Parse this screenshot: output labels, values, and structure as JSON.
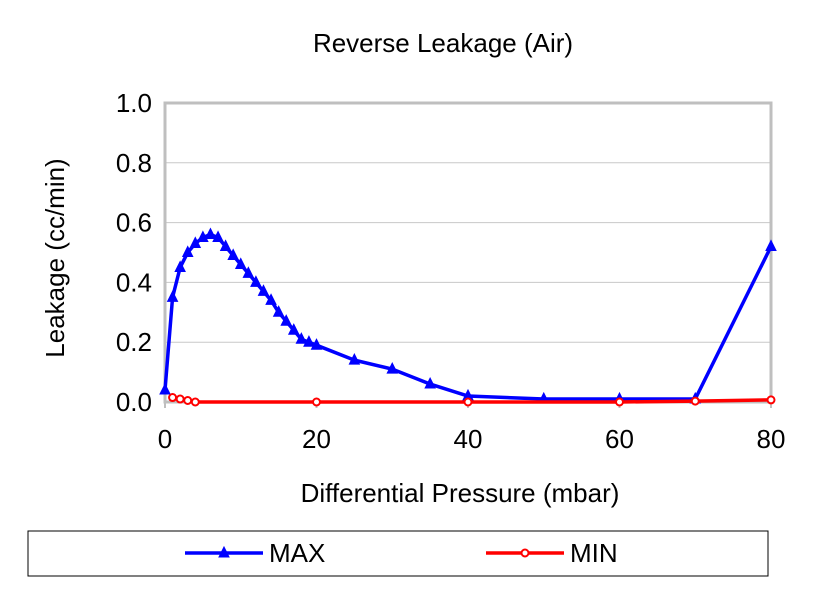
{
  "chart_data": {
    "type": "line",
    "title": "Reverse Leakage (Air)",
    "xlabel": "Differential Pressure (mbar)",
    "ylabel": "Leakage (cc/min)",
    "xlim": [
      0,
      80
    ],
    "ylim": [
      0,
      1.0
    ],
    "xticks": [
      "0",
      "20",
      "40",
      "60",
      "80"
    ],
    "yticks": [
      "0.0",
      "0.2",
      "0.4",
      "0.6",
      "0.8",
      "1.0"
    ],
    "grid": true,
    "legend_position": "bottom",
    "series": [
      {
        "name": "MAX",
        "color": "#0000ff",
        "marker": "triangle",
        "x": [
          0,
          1,
          2,
          3,
          4,
          5,
          6,
          7,
          8,
          9,
          10,
          11,
          12,
          13,
          14,
          15,
          16,
          17,
          18,
          19,
          20,
          25,
          30,
          35,
          40,
          50,
          60,
          70,
          80
        ],
        "y": [
          0.04,
          0.35,
          0.45,
          0.5,
          0.53,
          0.55,
          0.56,
          0.55,
          0.52,
          0.49,
          0.46,
          0.43,
          0.4,
          0.37,
          0.34,
          0.3,
          0.27,
          0.24,
          0.21,
          0.2,
          0.19,
          0.14,
          0.11,
          0.06,
          0.02,
          0.01,
          0.01,
          0.01,
          0.52
        ]
      },
      {
        "name": "MIN",
        "color": "#ff0000",
        "marker": "circle",
        "x": [
          1,
          2,
          3,
          4,
          20,
          40,
          60,
          70,
          80
        ],
        "y": [
          0.015,
          0.01,
          0.005,
          0.0,
          0.0,
          0.0,
          0.0,
          0.003,
          0.007
        ]
      }
    ]
  }
}
